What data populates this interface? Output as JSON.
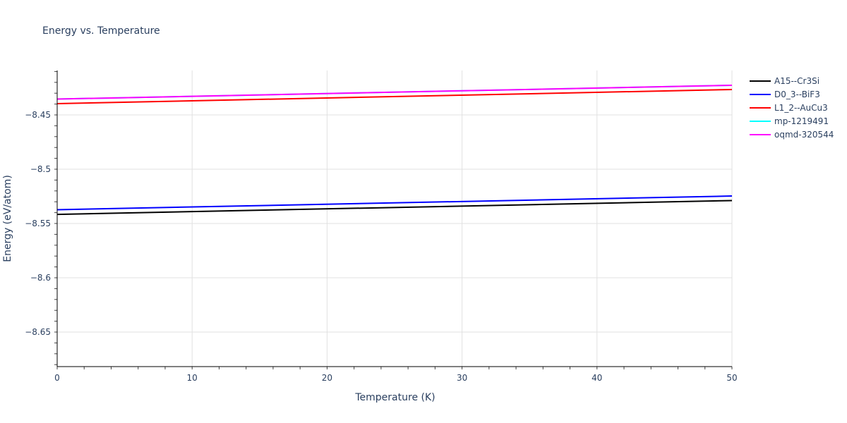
{
  "chart_data": {
    "type": "line",
    "title": "Energy vs. Temperature",
    "xlabel": "Temperature (K)",
    "ylabel": "Energy (eV/atom)",
    "xlim": [
      0,
      50
    ],
    "ylim": [
      -8.682,
      -8.4103
    ],
    "x_ticks": [
      0,
      10,
      20,
      30,
      40,
      50
    ],
    "y_ticks": [
      -8.45,
      -8.5,
      -8.55,
      -8.6,
      -8.65
    ],
    "y_tick_labels": [
      "−8.45",
      "−8.5",
      "−8.55",
      "−8.6",
      "−8.65"
    ],
    "x": [
      0,
      50
    ],
    "grid": true,
    "legend_position": "right",
    "series": [
      {
        "name": "A15--Cr3Si",
        "color": "#000000",
        "values": [
          -8.5416,
          -8.5289
        ]
      },
      {
        "name": "D0_3--BiF3",
        "color": "#0000ff",
        "values": [
          -8.5373,
          -8.5247
        ]
      },
      {
        "name": "L1_2--AuCu3",
        "color": "#ff0000",
        "values": [
          -8.4396,
          -8.4266
        ]
      },
      {
        "name": "mp-1219491",
        "color": "#00ffff",
        "values": [
          -8.4354,
          -8.4227
        ]
      },
      {
        "name": "oqmd-320544",
        "color": "#ff00ff",
        "values": [
          -8.4354,
          -8.4227
        ]
      }
    ]
  }
}
